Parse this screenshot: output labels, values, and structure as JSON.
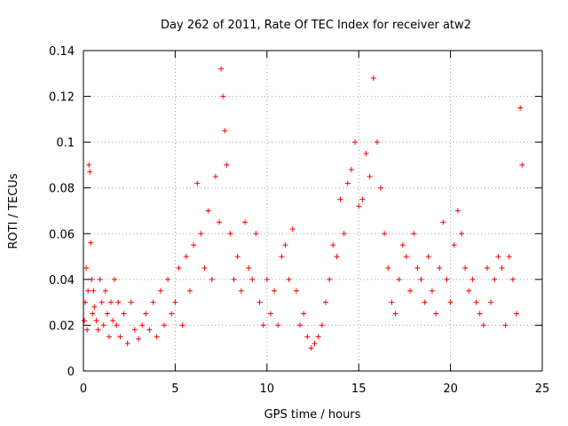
{
  "chart_data": {
    "type": "scatter",
    "title": "Day 262 of 2011, Rate Of TEC Index for receiver atw2",
    "xlabel": "GPS time / hours",
    "ylabel": "ROTI / TECUs",
    "xlim": [
      0,
      25
    ],
    "ylim": [
      0,
      0.14
    ],
    "xticks": [
      "0",
      "5",
      "10",
      "15",
      "20",
      "25"
    ],
    "yticks": [
      "0",
      "0.02",
      "0.04",
      "0.06",
      "0.08",
      "0.1",
      "0.12",
      "0.14"
    ],
    "grid": true,
    "marker": "+",
    "color": "#ff0000",
    "series": [
      {
        "x": [
          0.05,
          0.1,
          0.15,
          0.2,
          0.25,
          0.3,
          0.35,
          0.4,
          0.45,
          0.5,
          0.55,
          0.6,
          0.7,
          0.8,
          0.9,
          1.0,
          1.1,
          1.2,
          1.3,
          1.4,
          1.5,
          1.6,
          1.7,
          1.8,
          1.9,
          2.0,
          2.2,
          2.4,
          2.6,
          2.8,
          3.0,
          3.2,
          3.4,
          3.6,
          3.8,
          4.0,
          4.2,
          4.4,
          4.6,
          4.8,
          5.0,
          5.2,
          5.4,
          5.6,
          5.8,
          6.0,
          6.2,
          6.4,
          6.6,
          6.8,
          7.0,
          7.2,
          7.4,
          7.5,
          7.6,
          7.7,
          7.8,
          8.0,
          8.2,
          8.4,
          8.6,
          8.8,
          9.0,
          9.2,
          9.4,
          9.6,
          9.8,
          10.0,
          10.2,
          10.4,
          10.6,
          10.8,
          11.0,
          11.2,
          11.4,
          11.6,
          11.8,
          12.0,
          12.2,
          12.4,
          12.6,
          12.8,
          13.0,
          13.2,
          13.4,
          13.6,
          13.8,
          14.0,
          14.2,
          14.4,
          14.6,
          14.8,
          15.0,
          15.2,
          15.4,
          15.6,
          15.8,
          16.0,
          16.2,
          16.4,
          16.6,
          16.8,
          17.0,
          17.2,
          17.4,
          17.6,
          17.8,
          18.0,
          18.2,
          18.4,
          18.6,
          18.8,
          19.0,
          19.2,
          19.4,
          19.6,
          19.8,
          20.0,
          20.2,
          20.4,
          20.6,
          20.8,
          21.0,
          21.2,
          21.4,
          21.6,
          21.8,
          22.0,
          22.2,
          22.4,
          22.6,
          22.8,
          23.0,
          23.2,
          23.4,
          23.6,
          23.8,
          23.9
        ],
        "y": [
          0.022,
          0.03,
          0.045,
          0.018,
          0.035,
          0.09,
          0.087,
          0.056,
          0.04,
          0.025,
          0.035,
          0.028,
          0.022,
          0.018,
          0.04,
          0.03,
          0.02,
          0.035,
          0.025,
          0.015,
          0.03,
          0.022,
          0.04,
          0.02,
          0.03,
          0.015,
          0.025,
          0.012,
          0.03,
          0.018,
          0.014,
          0.02,
          0.025,
          0.018,
          0.03,
          0.015,
          0.035,
          0.02,
          0.04,
          0.025,
          0.03,
          0.045,
          0.02,
          0.05,
          0.035,
          0.055,
          0.082,
          0.06,
          0.045,
          0.07,
          0.04,
          0.085,
          0.065,
          0.132,
          0.12,
          0.105,
          0.09,
          0.06,
          0.04,
          0.05,
          0.035,
          0.065,
          0.045,
          0.04,
          0.06,
          0.03,
          0.02,
          0.04,
          0.025,
          0.035,
          0.02,
          0.05,
          0.055,
          0.04,
          0.062,
          0.035,
          0.02,
          0.025,
          0.015,
          0.01,
          0.012,
          0.015,
          0.02,
          0.03,
          0.04,
          0.055,
          0.05,
          0.075,
          0.06,
          0.082,
          0.088,
          0.1,
          0.072,
          0.075,
          0.095,
          0.085,
          0.128,
          0.1,
          0.08,
          0.06,
          0.045,
          0.03,
          0.025,
          0.04,
          0.055,
          0.05,
          0.035,
          0.06,
          0.045,
          0.04,
          0.03,
          0.05,
          0.035,
          0.025,
          0.045,
          0.065,
          0.04,
          0.03,
          0.055,
          0.07,
          0.06,
          0.045,
          0.035,
          0.04,
          0.03,
          0.025,
          0.02,
          0.045,
          0.03,
          0.04,
          0.05,
          0.045,
          0.02,
          0.05,
          0.04,
          0.025,
          0.115,
          0.09
        ]
      }
    ]
  }
}
